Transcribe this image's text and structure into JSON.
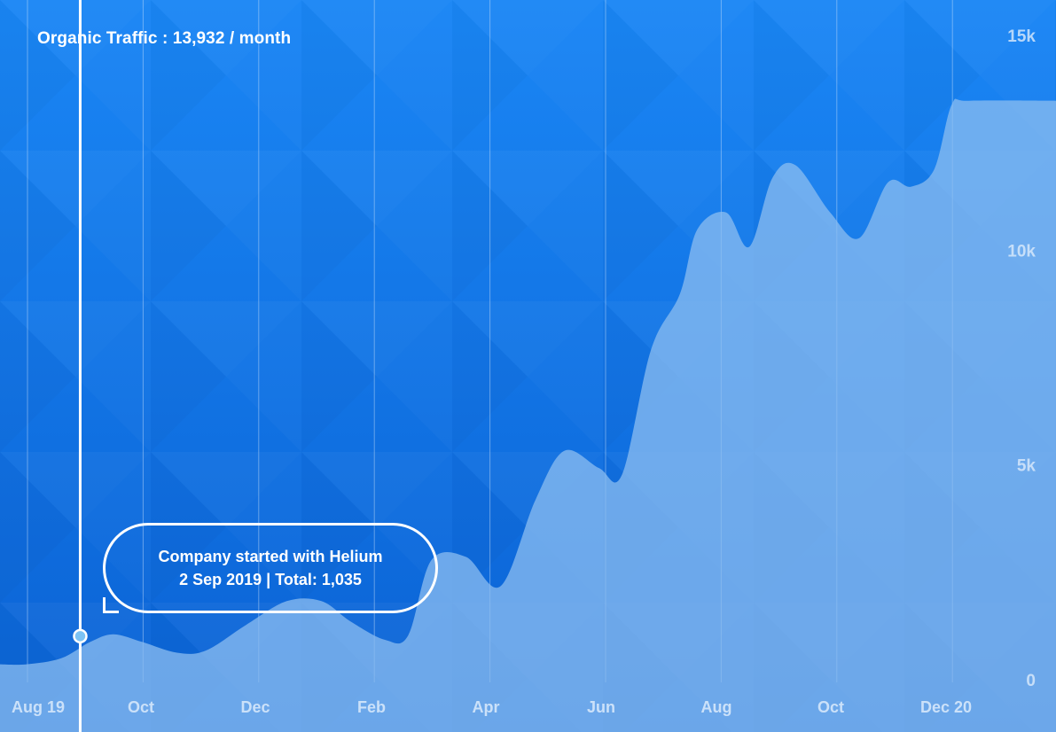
{
  "headline": "Organic Traffic : 13,932 / month",
  "callout": {
    "line1": "Company started with Helium",
    "line2": "2 Sep 2019 | Total: 1,035"
  },
  "colors": {
    "background_top": "#1480f4",
    "background_bottom": "#0b64d6",
    "area_fill": "#8cbdf0",
    "gridline": "#cfe3fb",
    "tick_label": "#dcebfb",
    "marker": "#ffffff",
    "marker_fill": "#7cc3f4"
  },
  "chart_data": {
    "type": "area",
    "title": "Organic Traffic",
    "xlabel": "",
    "ylabel": "",
    "x_ticks": [
      "Aug 19",
      "Oct",
      "Dec",
      "Feb",
      "Apr",
      "Jun",
      "Aug",
      "Oct",
      "Dec 20"
    ],
    "y_ticks": [
      0,
      5000,
      10000,
      15000
    ],
    "y_tick_labels": [
      "0",
      "5k",
      "10k",
      "15k"
    ],
    "ylim": [
      0,
      15000
    ],
    "xlim": [
      0,
      16.3
    ],
    "x_unit": "months since 1 Aug 2019",
    "series": [
      {
        "name": "Organic traffic",
        "points": [
          [
            0,
            380
          ],
          [
            0.6,
            520
          ],
          [
            1.1,
            900
          ],
          [
            1.5,
            1080
          ],
          [
            2.0,
            900
          ],
          [
            2.6,
            650
          ],
          [
            3.1,
            700
          ],
          [
            3.8,
            1300
          ],
          [
            4.5,
            1850
          ],
          [
            5.1,
            1850
          ],
          [
            5.6,
            1380
          ],
          [
            6.2,
            950
          ],
          [
            6.6,
            1050
          ],
          [
            7.0,
            2800
          ],
          [
            7.6,
            2880
          ],
          [
            8.2,
            2200
          ],
          [
            8.8,
            4200
          ],
          [
            9.3,
            5350
          ],
          [
            9.9,
            4950
          ],
          [
            10.3,
            4800
          ],
          [
            10.8,
            7700
          ],
          [
            11.3,
            9000
          ],
          [
            11.6,
            10500
          ],
          [
            12.1,
            10900
          ],
          [
            12.5,
            10100
          ],
          [
            12.9,
            11700
          ],
          [
            13.3,
            12000
          ],
          [
            13.9,
            10900
          ],
          [
            14.4,
            10300
          ],
          [
            14.9,
            11600
          ],
          [
            15.3,
            11500
          ],
          [
            15.7,
            11900
          ],
          [
            16.0,
            13400
          ],
          [
            16.3,
            13500
          ]
        ]
      }
    ],
    "marker": {
      "label": "Company started with Helium",
      "date": "2 Sep 2019",
      "x": 1.05,
      "y": 1035
    }
  }
}
